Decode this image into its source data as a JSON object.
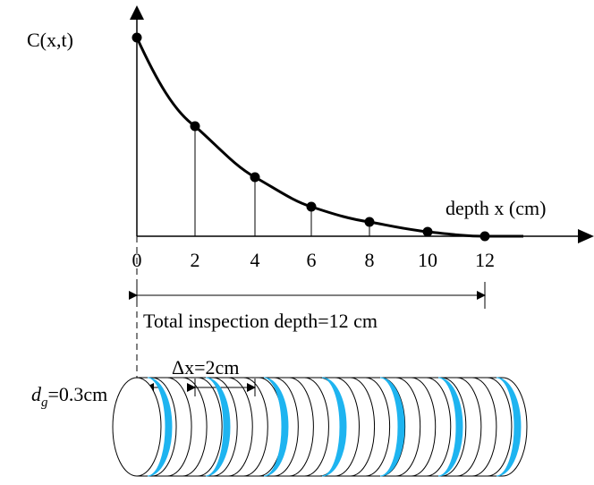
{
  "axis": {
    "y_label": "C(x,t)",
    "x_label": "depth x (cm)",
    "x_ticks": [
      0,
      2,
      4,
      6,
      8,
      10,
      12
    ]
  },
  "annotations": {
    "total_depth": "Total inspection depth=12 cm",
    "dx": "Δx=2cm",
    "dg_symbol": "d",
    "dg_sub": "g",
    "dg_value": "=0.3cm"
  }
}
